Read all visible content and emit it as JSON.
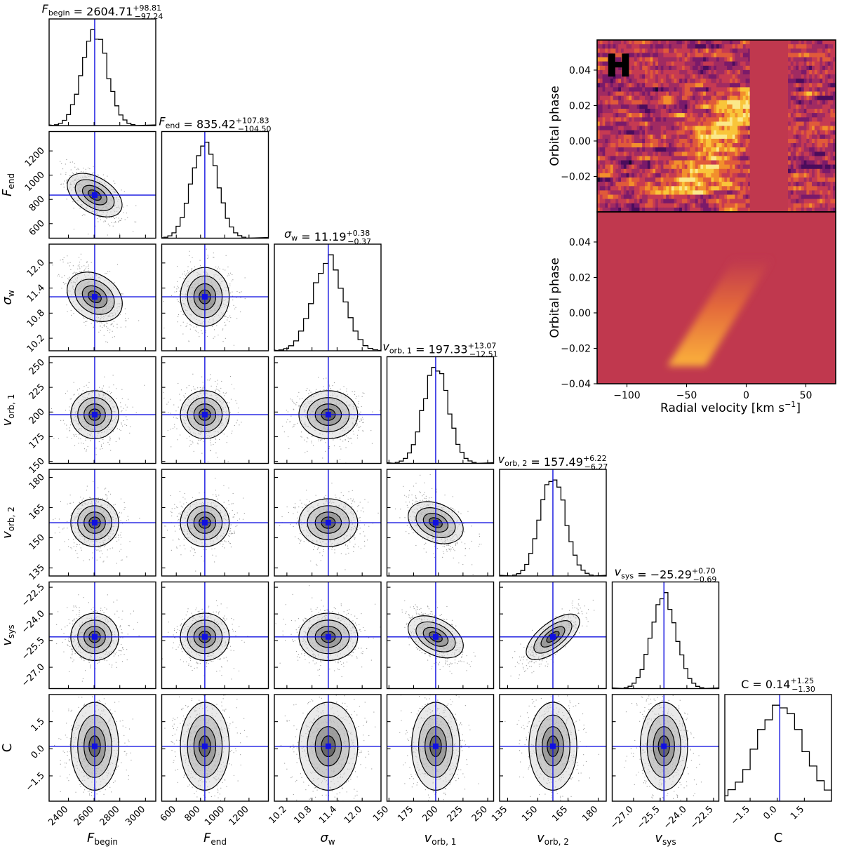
{
  "panel_letter": "H",
  "chart_data": {
    "type": "corner",
    "parameters": [
      {
        "key": "F_begin",
        "label_main": "F",
        "label_sub": "begin",
        "italic": true,
        "median": 2604.71,
        "plus": "98.81",
        "minus": "97.24",
        "title_value": "2604.71",
        "range": [
          2250,
          3080
        ],
        "ticks": [
          2400,
          2600,
          2800,
          3000
        ],
        "sigma": 98,
        "hist_pos": [
          0.06,
          0.07
        ]
      },
      {
        "key": "F_end",
        "label_main": "F",
        "label_sub": "end",
        "italic": true,
        "median": 835.42,
        "plus": "107.83",
        "minus": "104.50",
        "title_value": "835.42",
        "range": [
          480,
          1360
        ],
        "ticks": [
          600,
          800,
          1000,
          1200
        ],
        "sigma": 106,
        "hist_pos": [
          0.07,
          0.05
        ]
      },
      {
        "key": "sigma_w",
        "label_main": "σ",
        "label_sub": "w",
        "italic": true,
        "median": 11.19,
        "plus": "0.38",
        "minus": "0.37",
        "title_value": "11.19",
        "range": [
          9.9,
          12.45
        ],
        "ticks": [
          10.2,
          10.8,
          11.4,
          12.0
        ],
        "sigma": 0.37,
        "hist_pos": [
          0.05,
          0.07
        ]
      },
      {
        "key": "v_orb1",
        "label_main": "v",
        "label_sub": "orb, 1",
        "italic": true,
        "median": 197.33,
        "plus": "13.07",
        "minus": "12.51",
        "title_value": "197.33",
        "range": [
          148,
          256
        ],
        "ticks": [
          150,
          175,
          200,
          225,
          250
        ],
        "sigma": 12.8,
        "hist_pos": [
          0.06,
          0.07
        ]
      },
      {
        "key": "v_orb2",
        "label_main": "v",
        "label_sub": "orb, 2",
        "italic": true,
        "median": 157.49,
        "plus": "6.22",
        "minus": "6.27",
        "title_value": "157.49",
        "range": [
          131,
          184
        ],
        "ticks": [
          135,
          150,
          165,
          180
        ],
        "sigma": 6.25,
        "hist_pos": [
          0.06,
          0.07
        ]
      },
      {
        "key": "v_sys",
        "label_main": "v",
        "label_sub": "sys",
        "italic": true,
        "median": -25.29,
        "plus": "0.70",
        "minus": "0.69",
        "title_value": "−25.29",
        "range": [
          -28.2,
          -22.2
        ],
        "ticks": [
          -27.0,
          -25.5,
          -24.0,
          -22.5
        ],
        "sigma": 0.7,
        "hist_pos": [
          0.08,
          0.06
        ]
      },
      {
        "key": "C",
        "label_main": "C",
        "label_sub": "",
        "italic": false,
        "median": 0.14,
        "plus": "1.25",
        "minus": "1.30",
        "title_value": "0.14",
        "range": [
          -2.9,
          3.0
        ],
        "ticks": [
          -1.5,
          0.0,
          1.5
        ],
        "sigma": 1.28,
        "hist_pos": [
          0.08,
          0.12
        ]
      }
    ],
    "tick_labels": [
      [
        "2400",
        "2600",
        "2800",
        "3000"
      ],
      [
        "600",
        "800",
        "1000",
        "1200"
      ],
      [
        "10.2",
        "10.8",
        "11.4",
        "12.0"
      ],
      [
        "150",
        "175",
        "200",
        "225",
        "250"
      ],
      [
        "135",
        "150",
        "165",
        "180"
      ],
      [
        "−27.0",
        "−25.5",
        "−24.0",
        "−22.5"
      ],
      [
        "−1.5",
        "0.0",
        "1.5"
      ]
    ],
    "correlations": {
      "F_end|F_begin": -0.6,
      "sigma_w|F_begin": -0.55,
      "v_orb2|v_orb1": -0.45,
      "v_sys|v_orb1": -0.55,
      "v_sys|v_orb2": 0.8
    },
    "title_prefix_C": "C",
    "inset": {
      "xlabel": "Radial velocity [km s⁻¹]",
      "xlabel_parts": [
        "Radial velocity [km s",
        "−1",
        "]"
      ],
      "ylabel": "Orbital phase",
      "xlim": [
        -125,
        75
      ],
      "ylim": [
        -0.04,
        0.057
      ],
      "xticks": [
        -100,
        -50,
        0,
        50
      ],
      "xtick_labels": [
        "−100",
        "−50",
        "0",
        "50"
      ],
      "yticks": [
        -0.04,
        -0.02,
        0.0,
        0.02,
        0.04
      ],
      "ytick_labels": [
        "−0.04",
        "−0.02",
        "0.00",
        "0.02",
        "0.04"
      ],
      "mask_range": [
        3,
        35
      ],
      "model_track": {
        "phase": [
          -0.03,
          0.03
        ],
        "velocity_center": [
          -50,
          5
        ]
      },
      "background_color": "#c0384e"
    }
  }
}
